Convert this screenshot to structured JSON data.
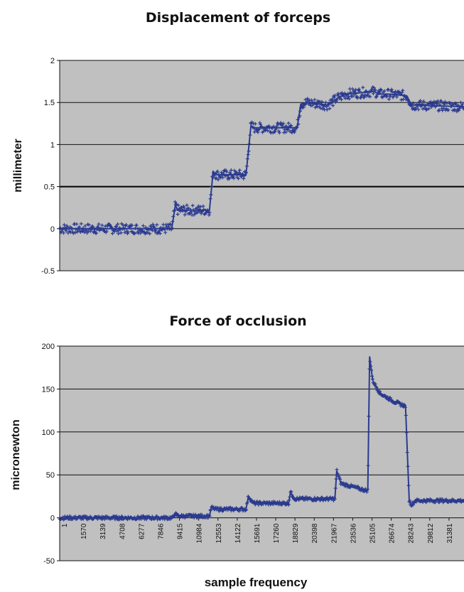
{
  "chart_data": [
    {
      "type": "scatter",
      "title": "Displacement of forceps",
      "xlabel": "",
      "ylabel": "millimeter",
      "ylim": [
        -0.5,
        2
      ],
      "yticks": [
        "-0.5",
        "0",
        "0.5",
        "1",
        "1.5",
        "2"
      ],
      "ytick_values": [
        -0.5,
        0,
        0.5,
        1,
        1.5,
        2
      ],
      "grid": true,
      "series_color": "#2b3a8f",
      "background_color": "#c0c0c0",
      "noise_band": 0.06,
      "xlim": [
        0,
        33200
      ],
      "series": [
        {
          "x": [
            0,
            9200,
            9500,
            9700,
            12300,
            12600,
            12900,
            15300,
            15700,
            16000,
            19500,
            19800,
            20300,
            22000,
            22800,
            23500,
            25800,
            26300,
            27000,
            28500,
            28900,
            33200
          ],
          "y": [
            0.0,
            0.0,
            0.28,
            0.22,
            0.22,
            0.68,
            0.64,
            0.64,
            1.22,
            1.2,
            1.2,
            1.48,
            1.5,
            1.47,
            1.55,
            1.6,
            1.63,
            1.6,
            1.6,
            1.58,
            1.47,
            1.45
          ]
        }
      ]
    },
    {
      "type": "scatter",
      "title": "Force of occlusion",
      "xlabel": "sample frequency",
      "ylabel": "micronewton",
      "ylim": [
        -50,
        200
      ],
      "yticks": [
        "-50",
        "0",
        "50",
        "100",
        "150",
        "200"
      ],
      "ytick_values": [
        -50,
        0,
        50,
        100,
        150,
        200
      ],
      "xticks": [
        "1",
        "1570",
        "3139",
        "4708",
        "6277",
        "7846",
        "9415",
        "10984",
        "12553",
        "14122",
        "15691",
        "17260",
        "18829",
        "20398",
        "21967",
        "23536",
        "25105",
        "26674",
        "28243",
        "29812",
        "31381"
      ],
      "grid": true,
      "series_color": "#2b3a8f",
      "background_color": "#c0c0c0",
      "noise_band": 2,
      "xlim": [
        0,
        33200
      ],
      "series": [
        {
          "x": [
            0,
            9300,
            9450,
            9700,
            12300,
            12450,
            12800,
            15300,
            15500,
            15900,
            18800,
            18950,
            19300,
            22600,
            22750,
            23100,
            25100,
            25300,
            25450,
            25700,
            26300,
            27500,
            28400,
            28700,
            28900,
            29200,
            33200
          ],
          "y": [
            0,
            0,
            5,
            2,
            2,
            12,
            10,
            10,
            25,
            17,
            17,
            30,
            22,
            22,
            55,
            40,
            32,
            32,
            188,
            160,
            145,
            135,
            130,
            20,
            15,
            20,
            20
          ]
        }
      ]
    }
  ]
}
